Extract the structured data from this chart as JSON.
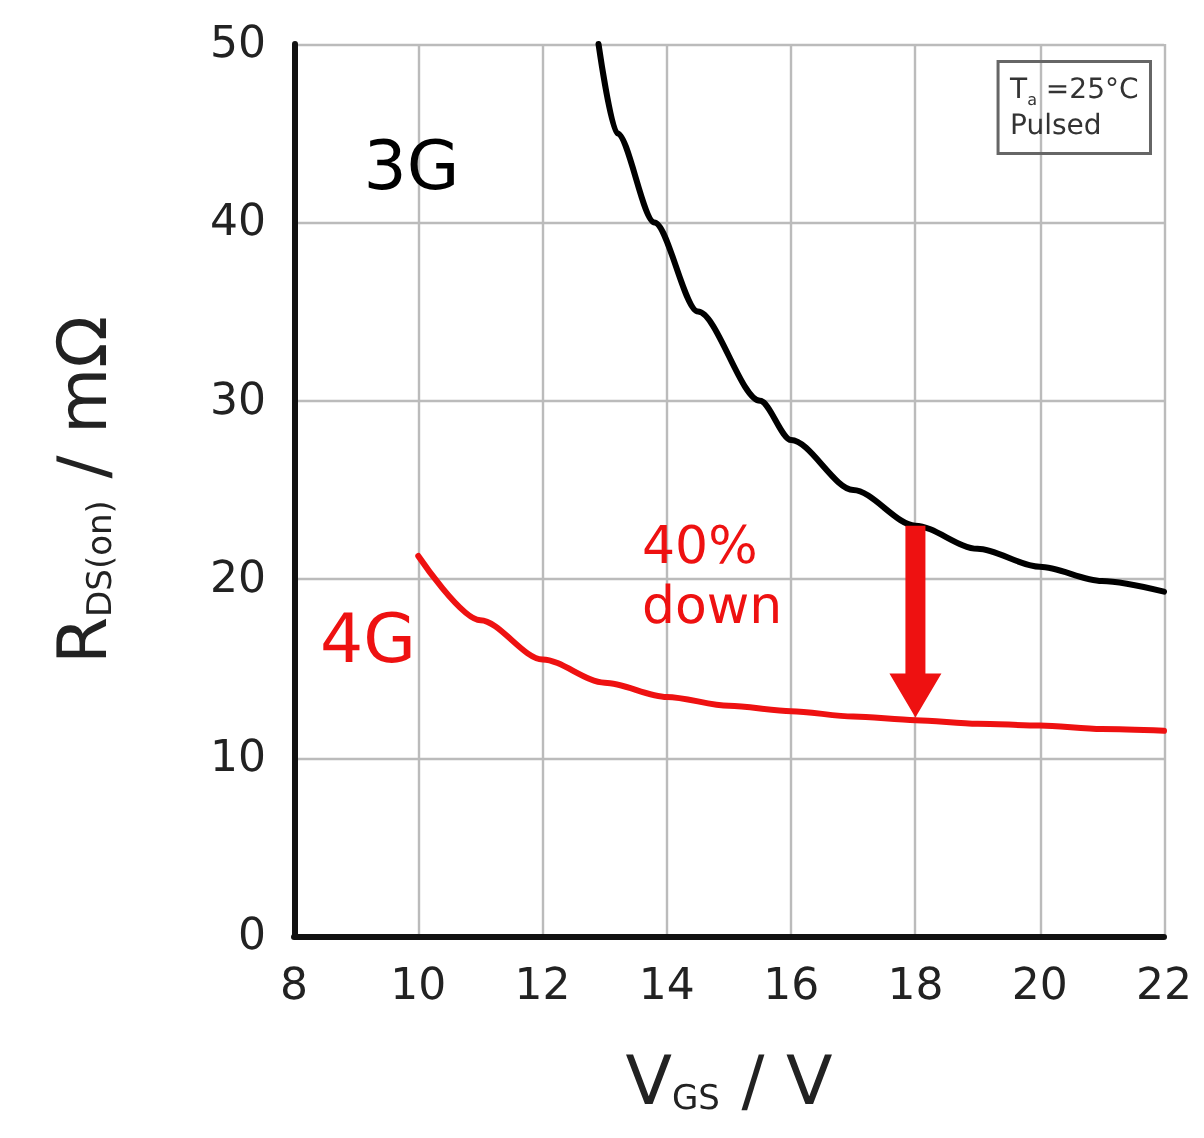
{
  "chart_data": {
    "type": "line",
    "xlabel": "V$_{GS}$ / V",
    "ylabel": "R$_{DS(on)}$ / mΩ",
    "xlim": [
      8,
      22
    ],
    "xticks": [
      8,
      10,
      12,
      14,
      16,
      18,
      20,
      22
    ],
    "ylim": [
      0,
      50
    ],
    "yticks": [
      0,
      10,
      20,
      30,
      40,
      50
    ],
    "grid": true,
    "legend": false,
    "marker": "none",
    "line_style": "solid",
    "series": [
      {
        "name": "3G",
        "color": "#000000",
        "x": [
          12.9,
          13.2,
          13.8,
          14.5,
          15.5,
          16,
          17,
          18,
          19,
          20,
          21,
          22
        ],
        "values": [
          50,
          45,
          40,
          35,
          30,
          27.8,
          25,
          23,
          21.7,
          20.7,
          19.9,
          19.3
        ]
      },
      {
        "name": "4G",
        "color": "#ee1111",
        "x": [
          10,
          11,
          12,
          13,
          14,
          15,
          16,
          17,
          18,
          19,
          20,
          21,
          22
        ],
        "values": [
          21.3,
          17.7,
          15.5,
          14.2,
          13.4,
          12.9,
          12.6,
          12.3,
          12.1,
          11.9,
          11.8,
          11.6,
          11.5
        ]
      }
    ],
    "annotations": [
      "40%\ndown",
      "T$_{a}$ =25°C\nPulsed"
    ]
  }
}
